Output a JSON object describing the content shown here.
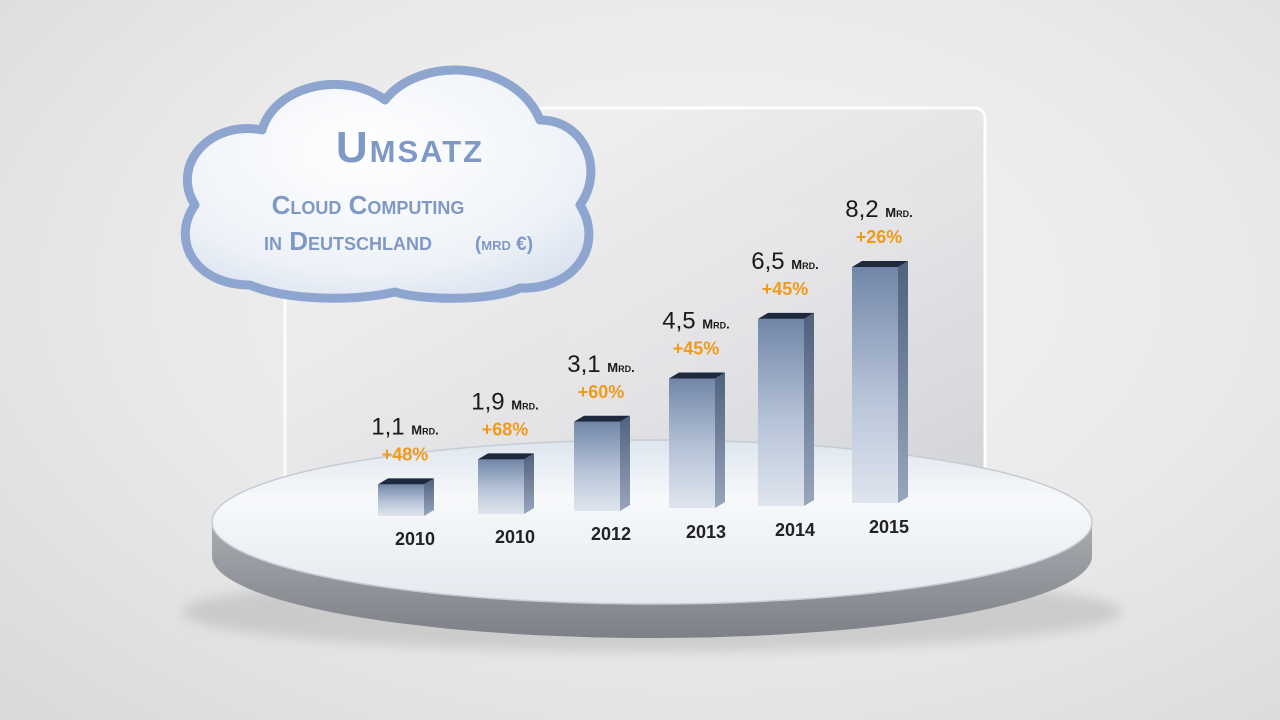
{
  "title": {
    "main": "Umsatz",
    "line1": "Cloud Computing",
    "line2": "in Deutschland",
    "unit": "(mrd €)"
  },
  "colors": {
    "bar_top": "#1d2a3e",
    "bar_light": "#c4d0e3",
    "bar_dark": "#6d7f9c",
    "value_text": "#1a1a1a",
    "growth_text": "#f09a1a",
    "year_text": "#222222",
    "cloud_border": "#8ea6cf"
  },
  "chart_data": {
    "type": "bar",
    "title": "Umsatz Cloud Computing in Deutschland (mrd €)",
    "categories": [
      "2010",
      "2010",
      "2012",
      "2013",
      "2014",
      "2015"
    ],
    "values": [
      1.1,
      1.9,
      3.1,
      4.5,
      6.5,
      8.2
    ],
    "value_labels": [
      "1,1",
      "1,9",
      "3,1",
      "4,5",
      "6,5",
      "8,2"
    ],
    "value_unit": "Mrd.",
    "growth_labels": [
      "+48%",
      "+68%",
      "+60%",
      "+45%",
      "+45%",
      "+26%"
    ],
    "ylim": [
      0,
      8.2
    ],
    "grid": false,
    "legend": "none"
  }
}
